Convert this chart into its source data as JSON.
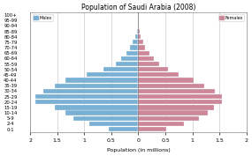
{
  "title": "Population of Saudi Arabia (2008)",
  "xlabel": "Population (in millions)",
  "age_groups": [
    "0-1",
    "2-4",
    "5-9",
    "10-14",
    "15-19",
    "20-24",
    "25-29",
    "30-34",
    "35-39",
    "40-44",
    "45-49",
    "50-54",
    "55-59",
    "60-64",
    "65-69",
    "70-74",
    "75-79",
    "80-84",
    "85-89",
    "90-94",
    "95-99",
    "100+"
  ],
  "males": [
    0.55,
    0.9,
    1.2,
    1.35,
    1.55,
    1.9,
    1.9,
    1.75,
    1.55,
    1.35,
    0.95,
    0.65,
    0.42,
    0.32,
    0.22,
    0.15,
    0.1,
    0.05,
    0.025,
    0.01,
    0.005,
    0.002
  ],
  "females": [
    0.52,
    0.85,
    1.12,
    1.28,
    1.4,
    1.55,
    1.55,
    1.42,
    1.22,
    1.02,
    0.75,
    0.55,
    0.38,
    0.28,
    0.2,
    0.13,
    0.09,
    0.04,
    0.02,
    0.008,
    0.004,
    0.001
  ],
  "male_color": "#7ab0d4",
  "female_color": "#cc8899",
  "xlim": 2.0,
  "title_fontsize": 5.5,
  "label_fontsize": 4.5,
  "ytick_fontsize": 3.8,
  "xtick_fontsize": 4.5,
  "bar_height": 0.85,
  "background_color": "#ffffff",
  "grid_color": "#bbbbcc"
}
